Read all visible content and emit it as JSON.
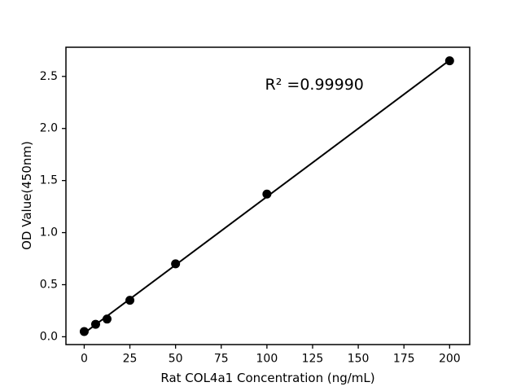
{
  "chart_data": {
    "type": "scatter",
    "title": "",
    "xlabel": "Rat COL4a1 Concentration (ng/mL)",
    "ylabel": "OD Value(450nm)",
    "x": [
      0,
      6.25,
      12.5,
      25,
      50,
      100,
      200
    ],
    "y": [
      0.05,
      0.12,
      0.17,
      0.35,
      0.7,
      1.37,
      2.65
    ],
    "fit_line": {
      "slope": 0.0131,
      "intercept": 0.035,
      "x_start": 0,
      "x_end": 200
    },
    "annotation": {
      "text": "R² =0.99990",
      "x": 126,
      "y": 2.42
    },
    "xlim": [
      -10,
      211
    ],
    "ylim": [
      -0.075,
      2.78
    ],
    "x_ticks": [
      0,
      25,
      50,
      75,
      100,
      125,
      150,
      175,
      200
    ],
    "x_tick_labels": [
      "0",
      "25",
      "50",
      "75",
      "100",
      "125",
      "150",
      "175",
      "200"
    ],
    "y_ticks": [
      0,
      0.5,
      1.0,
      1.5,
      2.0,
      2.5
    ],
    "y_tick_labels": [
      "0.0",
      "0.5",
      "1.0",
      "1.5",
      "2.0",
      "2.5"
    ],
    "grid": false,
    "legend": false,
    "marker_radius": 5.5,
    "colors": {
      "marker": "#000000",
      "line": "#000000",
      "axis": "#000000",
      "text": "#000000",
      "background": "#ffffff"
    }
  }
}
